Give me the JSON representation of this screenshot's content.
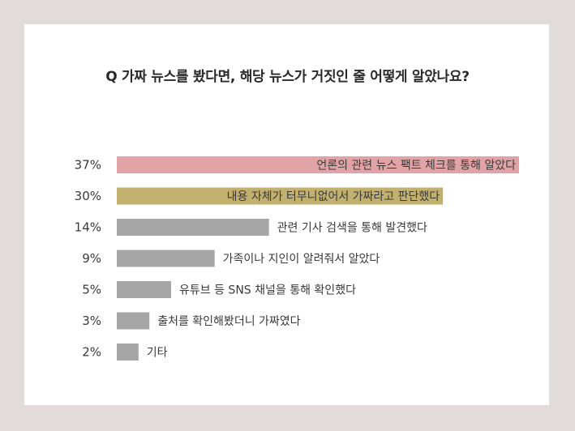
{
  "chart_data": {
    "type": "bar",
    "orientation": "horizontal",
    "title": "Q 가짜 뉴스를 봤다면, 해당 뉴스가 거짓인 줄 어떻게 알았나요?",
    "value_format": "{v}%",
    "xlim": [
      0,
      37
    ],
    "categories": [
      "언론의 관련 뉴스 팩트 체크를 통해 알았다",
      "내용 자체가 터무니없어서 가짜라고 판단했다",
      "관련 기사 검색을 통해 발견했다",
      "가족이나 지인이 알려줘서 알았다",
      "유튜브 등 SNS 채널을 통해 확인했다",
      "출처를 확인해봤더니 가짜였다",
      "기타"
    ],
    "values": [
      37,
      30,
      14,
      9,
      5,
      3,
      2
    ],
    "value_labels": [
      "37%",
      "30%",
      "14%",
      "9%",
      "5%",
      "3%",
      "2%"
    ],
    "colors": [
      "#e2a3a6",
      "#c2b06e",
      "#a6a6a6",
      "#a6a6a6",
      "#a6a6a6",
      "#a6a6a6",
      "#a6a6a6"
    ],
    "label_inside": [
      true,
      true,
      false,
      false,
      false,
      false,
      false
    ],
    "grid": false,
    "legend": "none"
  }
}
